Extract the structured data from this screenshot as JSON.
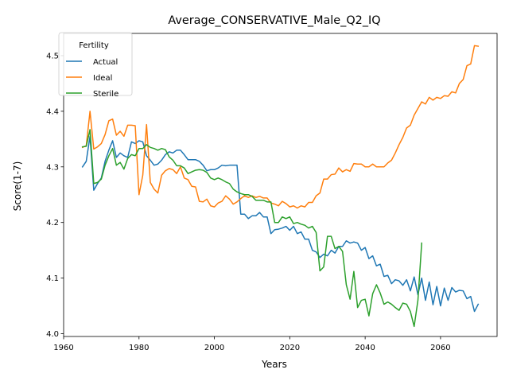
{
  "chart_data": {
    "type": "line",
    "title": "Average_CONSERVATIVE_Male_Q2_IQ",
    "xlabel": "Years",
    "ylabel": "Score(1-7)",
    "xlim": [
      1960,
      2075
    ],
    "ylim": [
      3.995,
      4.54
    ],
    "xticks": [
      1960,
      1980,
      2000,
      2020,
      2040,
      2060
    ],
    "yticks": [
      4.0,
      4.1,
      4.2,
      4.3,
      4.4,
      4.5
    ],
    "xtick_labels": [
      "1960",
      "1980",
      "2000",
      "2020",
      "2040",
      "2060"
    ],
    "ytick_labels": [
      "4.0",
      "4.1",
      "4.2",
      "4.3",
      "4.4",
      "4.5"
    ],
    "grid": false,
    "legend": {
      "title": "Fertility",
      "placement": "top-left"
    },
    "series": [
      {
        "name": "Actual",
        "color": "#1f77b4",
        "x": [
          1965,
          1966,
          1967,
          1968,
          1969,
          1970,
          1971,
          1972,
          1973,
          1974,
          1975,
          1976,
          1977,
          1978,
          1979,
          1980,
          1981,
          1982,
          1983,
          1984,
          1985,
          1986,
          1987,
          1988,
          1989,
          1990,
          1991,
          1992,
          1993,
          1994,
          1995,
          1996,
          1997,
          1998,
          1999,
          2000,
          2001,
          2002,
          2003,
          2004,
          2005,
          2006,
          2007,
          2008,
          2009,
          2010,
          2011,
          2012,
          2013,
          2014,
          2015,
          2016,
          2017,
          2018,
          2019,
          2020,
          2021,
          2022,
          2023,
          2024,
          2025,
          2026,
          2027,
          2028,
          2029,
          2030,
          2031,
          2032,
          2033,
          2034,
          2035,
          2036,
          2037,
          2038,
          2039,
          2040,
          2041,
          2042,
          2043,
          2044,
          2045,
          2046,
          2047,
          2048,
          2049,
          2050,
          2051,
          2052,
          2053,
          2054,
          2055,
          2056,
          2057,
          2058,
          2059,
          2060,
          2061,
          2062,
          2063,
          2064,
          2065,
          2066,
          2067,
          2068,
          2069,
          2070
        ],
        "y": [
          4.3,
          4.31,
          4.355,
          4.258,
          4.27,
          4.28,
          4.31,
          4.33,
          4.347,
          4.317,
          4.325,
          4.32,
          4.317,
          4.345,
          4.342,
          4.347,
          4.345,
          4.32,
          4.312,
          4.303,
          4.305,
          4.312,
          4.322,
          4.327,
          4.325,
          4.33,
          4.33,
          4.322,
          4.313,
          4.313,
          4.313,
          4.31,
          4.303,
          4.293,
          4.295,
          4.295,
          4.298,
          4.303,
          4.302,
          4.303,
          4.303,
          4.303,
          4.215,
          4.215,
          4.207,
          4.212,
          4.212,
          4.218,
          4.21,
          4.21,
          4.18,
          4.187,
          4.188,
          4.19,
          4.193,
          4.186,
          4.193,
          4.18,
          4.183,
          4.17,
          4.17,
          4.15,
          4.147,
          4.137,
          4.143,
          4.14,
          4.15,
          4.145,
          4.157,
          4.157,
          4.167,
          4.163,
          4.165,
          4.163,
          4.15,
          4.155,
          4.135,
          4.14,
          4.122,
          4.125,
          4.103,
          4.105,
          4.09,
          4.097,
          4.095,
          4.087,
          4.097,
          4.077,
          4.102,
          4.07,
          4.1,
          4.06,
          4.093,
          4.052,
          4.085,
          4.05,
          4.082,
          4.06,
          4.083,
          4.075,
          4.078,
          4.077,
          4.063,
          4.067,
          4.04,
          4.053
        ]
      },
      {
        "name": "Ideal",
        "color": "#ff7f0e",
        "x": [
          1965,
          1966,
          1967,
          1968,
          1969,
          1970,
          1971,
          1972,
          1973,
          1974,
          1975,
          1976,
          1977,
          1978,
          1979,
          1980,
          1981,
          1982,
          1983,
          1984,
          1985,
          1986,
          1987,
          1988,
          1989,
          1990,
          1991,
          1992,
          1993,
          1994,
          1995,
          1996,
          1997,
          1998,
          1999,
          2000,
          2001,
          2002,
          2003,
          2004,
          2005,
          2006,
          2007,
          2008,
          2009,
          2010,
          2011,
          2012,
          2013,
          2014,
          2015,
          2016,
          2017,
          2018,
          2019,
          2020,
          2021,
          2022,
          2023,
          2024,
          2025,
          2026,
          2027,
          2028,
          2029,
          2030,
          2031,
          2032,
          2033,
          2034,
          2035,
          2036,
          2037,
          2038,
          2039,
          2040,
          2041,
          2042,
          2043,
          2044,
          2045,
          2046,
          2047,
          2048,
          2049,
          2050,
          2051,
          2052,
          2053,
          2054,
          2055,
          2056,
          2057,
          2058,
          2059,
          2060,
          2061,
          2062,
          2063,
          2064,
          2065,
          2066,
          2067,
          2068,
          2069,
          2070
        ],
        "y": [
          4.335,
          4.338,
          4.4,
          4.332,
          4.336,
          4.342,
          4.358,
          4.383,
          4.386,
          4.357,
          4.364,
          4.355,
          4.375,
          4.375,
          4.374,
          4.25,
          4.285,
          4.376,
          4.272,
          4.26,
          4.253,
          4.285,
          4.293,
          4.297,
          4.295,
          4.288,
          4.3,
          4.28,
          4.277,
          4.265,
          4.264,
          4.238,
          4.237,
          4.242,
          4.23,
          4.228,
          4.235,
          4.238,
          4.248,
          4.242,
          4.233,
          4.237,
          4.243,
          4.248,
          4.245,
          4.248,
          4.245,
          4.247,
          4.244,
          4.244,
          4.235,
          4.233,
          4.23,
          4.238,
          4.234,
          4.228,
          4.23,
          4.226,
          4.23,
          4.228,
          4.236,
          4.236,
          4.248,
          4.253,
          4.278,
          4.278,
          4.286,
          4.287,
          4.298,
          4.291,
          4.295,
          4.292,
          4.306,
          4.305,
          4.305,
          4.3,
          4.3,
          4.305,
          4.3,
          4.3,
          4.3,
          4.307,
          4.312,
          4.325,
          4.34,
          4.353,
          4.37,
          4.375,
          4.393,
          4.405,
          4.417,
          4.413,
          4.425,
          4.42,
          4.425,
          4.423,
          4.428,
          4.427,
          4.435,
          4.433,
          4.45,
          4.457,
          4.482,
          4.485,
          4.518,
          4.517
        ]
      },
      {
        "name": "Sterile",
        "color": "#2ca02c",
        "x": [
          1965,
          1966,
          1967,
          1968,
          1969,
          1970,
          1971,
          1972,
          1973,
          1974,
          1975,
          1976,
          1977,
          1978,
          1979,
          1980,
          1981,
          1982,
          1983,
          1984,
          1985,
          1986,
          1987,
          1988,
          1989,
          1990,
          1991,
          1992,
          1993,
          1994,
          1995,
          1996,
          1997,
          1998,
          1999,
          2000,
          2001,
          2002,
          2003,
          2004,
          2005,
          2006,
          2007,
          2008,
          2009,
          2010,
          2011,
          2012,
          2013,
          2014,
          2015,
          2016,
          2017,
          2018,
          2019,
          2020,
          2021,
          2022,
          2023,
          2024,
          2025,
          2026,
          2027,
          2028,
          2029,
          2030,
          2031,
          2032,
          2033,
          2034,
          2035,
          2036,
          2037,
          2038,
          2039,
          2040,
          2041,
          2042,
          2043,
          2044,
          2045,
          2046,
          2047,
          2048,
          2049,
          2050,
          2051,
          2052,
          2053,
          2054,
          2055
        ],
        "y": [
          4.336,
          4.337,
          4.367,
          4.27,
          4.272,
          4.278,
          4.303,
          4.32,
          4.333,
          4.303,
          4.308,
          4.296,
          4.315,
          4.322,
          4.32,
          4.333,
          4.333,
          4.34,
          4.335,
          4.333,
          4.33,
          4.333,
          4.331,
          4.318,
          4.312,
          4.302,
          4.302,
          4.298,
          4.288,
          4.291,
          4.294,
          4.295,
          4.294,
          4.29,
          4.28,
          4.277,
          4.28,
          4.277,
          4.273,
          4.27,
          4.26,
          4.255,
          4.252,
          4.25,
          4.25,
          4.247,
          4.24,
          4.24,
          4.24,
          4.237,
          4.237,
          4.2,
          4.2,
          4.21,
          4.207,
          4.21,
          4.198,
          4.2,
          4.197,
          4.195,
          4.19,
          4.193,
          4.182,
          4.113,
          4.12,
          4.175,
          4.175,
          4.153,
          4.157,
          4.148,
          4.088,
          4.062,
          4.112,
          4.047,
          4.06,
          4.062,
          4.032,
          4.072,
          4.088,
          4.073,
          4.053,
          4.057,
          4.053,
          4.047,
          4.042,
          4.055,
          4.053,
          4.04,
          4.013,
          4.06,
          4.163
        ]
      }
    ]
  }
}
